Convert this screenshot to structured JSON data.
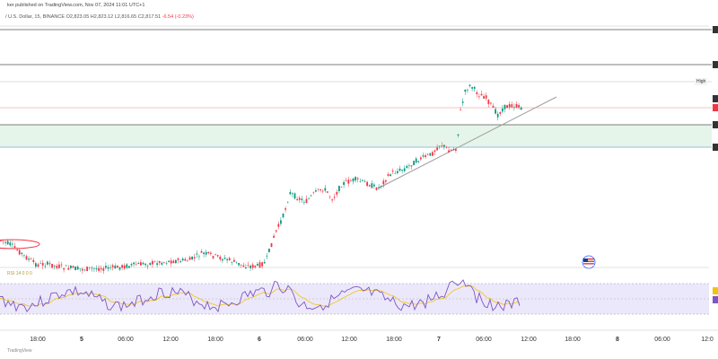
{
  "header": {
    "publisher_line": "ker published on TradingView.com, Nov 07, 2024 11:01 UTC+1",
    "symbol_line": "/ U.S. Dollar, 15, BINANCE",
    "ohlc_open": "O2,823.05",
    "ohlc_high": "H2,823.12",
    "ohlc_low": "L2,816.65",
    "ohlc_close": "C2,817.51",
    "change": "-6.54 (-0.23%)"
  },
  "tags": {
    "high": "High"
  },
  "rsi": {
    "label": "RSI 14 0 0 0"
  },
  "footer": {
    "brand": "TradingView"
  },
  "colors": {
    "up": "#089981",
    "down": "#f23645",
    "support_zone": "#e6f5ea",
    "support_line": "#7fa9d6",
    "rsi_band": "#ece8fb",
    "rsi_line": "#7e57c2",
    "rsi_ma": "#f1c40f"
  },
  "icons": {
    "flag": "us-flag-icon"
  },
  "chart_data": {
    "type": "candlestick",
    "x_ticks": [
      "18:00",
      "5",
      "06:00",
      "12:00",
      "18:00",
      "6",
      "06:00",
      "12:00",
      "18:00",
      "7",
      "06:00",
      "12:00",
      "18:00",
      "8",
      "06:00",
      "12:0"
    ]
  }
}
